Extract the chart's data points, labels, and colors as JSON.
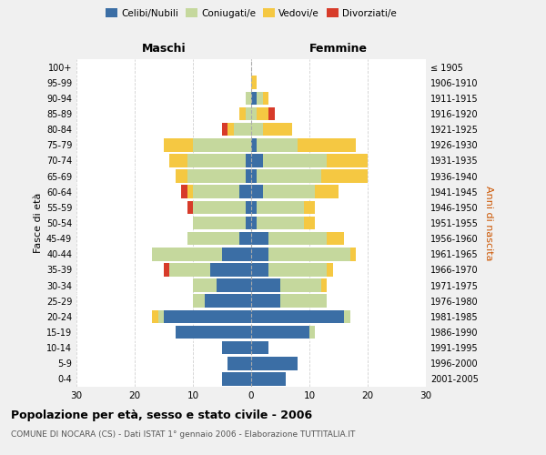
{
  "age_groups": [
    "0-4",
    "5-9",
    "10-14",
    "15-19",
    "20-24",
    "25-29",
    "30-34",
    "35-39",
    "40-44",
    "45-49",
    "50-54",
    "55-59",
    "60-64",
    "65-69",
    "70-74",
    "75-79",
    "80-84",
    "85-89",
    "90-94",
    "95-99",
    "100+"
  ],
  "birth_years": [
    "2001-2005",
    "1996-2000",
    "1991-1995",
    "1986-1990",
    "1981-1985",
    "1976-1980",
    "1971-1975",
    "1966-1970",
    "1961-1965",
    "1956-1960",
    "1951-1955",
    "1946-1950",
    "1941-1945",
    "1936-1940",
    "1931-1935",
    "1926-1930",
    "1921-1925",
    "1916-1920",
    "1911-1915",
    "1906-1910",
    "≤ 1905"
  ],
  "male_celibe": [
    5,
    4,
    5,
    13,
    15,
    8,
    6,
    7,
    5,
    2,
    1,
    1,
    2,
    1,
    1,
    0,
    0,
    0,
    0,
    0,
    0
  ],
  "male_coniugato": [
    0,
    0,
    0,
    0,
    1,
    2,
    4,
    7,
    12,
    9,
    9,
    9,
    8,
    10,
    10,
    10,
    3,
    1,
    1,
    0,
    0
  ],
  "male_vedovo": [
    0,
    0,
    0,
    0,
    1,
    0,
    0,
    0,
    0,
    0,
    0,
    0,
    1,
    2,
    3,
    5,
    1,
    1,
    0,
    0,
    0
  ],
  "male_divorziato": [
    0,
    0,
    0,
    0,
    0,
    0,
    0,
    1,
    0,
    0,
    0,
    1,
    1,
    0,
    0,
    0,
    1,
    0,
    0,
    0,
    0
  ],
  "female_celibe": [
    6,
    8,
    3,
    10,
    16,
    5,
    5,
    3,
    3,
    3,
    1,
    1,
    2,
    1,
    2,
    1,
    0,
    0,
    1,
    0,
    0
  ],
  "female_coniugato": [
    0,
    0,
    0,
    1,
    1,
    8,
    7,
    10,
    14,
    10,
    8,
    8,
    9,
    11,
    11,
    7,
    2,
    1,
    1,
    0,
    0
  ],
  "female_vedovo": [
    0,
    0,
    0,
    0,
    0,
    0,
    1,
    1,
    1,
    3,
    2,
    2,
    4,
    8,
    7,
    10,
    5,
    2,
    1,
    1,
    0
  ],
  "female_divorziato": [
    0,
    0,
    0,
    0,
    0,
    0,
    0,
    0,
    0,
    0,
    0,
    0,
    0,
    0,
    0,
    0,
    0,
    1,
    0,
    0,
    0
  ],
  "colors": {
    "celibe": "#3b6ea5",
    "coniugato": "#c5d89d",
    "vedovo": "#f5c842",
    "divorziato": "#d73b2a"
  },
  "xlim": 30,
  "title": "Popolazione per età, sesso e stato civile - 2006",
  "subtitle": "COMUNE DI NOCARA (CS) - Dati ISTAT 1° gennaio 2006 - Elaborazione TUTTITALIA.IT",
  "xlabel_left": "Maschi",
  "xlabel_right": "Femmine",
  "ylabel_left": "Fasce di età",
  "ylabel_right": "Anni di nascita",
  "bg_color": "#f0f0f0",
  "plot_bg_color": "#ffffff"
}
